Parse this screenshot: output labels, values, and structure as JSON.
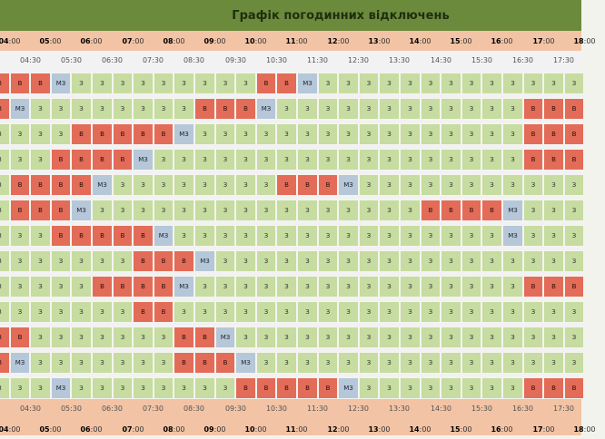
{
  "title": "Графік погодинних відключень",
  "hour_labels": [
    {
      "h": "04",
      "m": "00"
    },
    {
      "h": "05",
      "m": "00"
    },
    {
      "h": "06",
      "m": "00"
    },
    {
      "h": "07",
      "m": "00"
    },
    {
      "h": "08",
      "m": "00"
    },
    {
      "h": "09",
      "m": "00"
    },
    {
      "h": "10",
      "m": "00"
    },
    {
      "h": "11",
      "m": "00"
    },
    {
      "h": "12",
      "m": "00"
    },
    {
      "h": "13",
      "m": "00"
    },
    {
      "h": "14",
      "m": "00"
    },
    {
      "h": "15",
      "m": "00"
    },
    {
      "h": "16",
      "m": "00"
    },
    {
      "h": "17",
      "m": "00"
    },
    {
      "h": "18",
      "m": "00"
    }
  ],
  "half_labels": [
    "04:30",
    "05:30",
    "06:30",
    "07:30",
    "08:30",
    "09:30",
    "10:30",
    "11:30",
    "12:30",
    "13:30",
    "14:30",
    "15:30",
    "16:30",
    "17:30"
  ],
  "codes": {
    "з": "З",
    "в": "В",
    "м": "МЗ"
  },
  "rows": [
    "vvvmzzzzzzzzzvvmzzzzzzzzzzzzz",
    "vmzzzzzzzzvvvmzzzzzzzzzzzzvvv",
    "zzzzvvvvvmzzzzzzzzzzzzzzzzvvv",
    "zzzvvvvmzzzzzzzzzzzzzzzzzzvvv",
    "zvvvvmzzzzzzzzvvvmzzzzzzzzzzz",
    "zvvvmzzzzzzzzzzzzzzzzvvvvmzzz",
    "zzzvvvvvmzzzzzzzzzzzzzzzzmzzz",
    "zzzzzzzvvvmzzzzzzzzzzzzzzzzzz",
    "zzzzzvvvvmzzzzzzzzzzzzzzzzvvv",
    "zzzzzzzvvzzzzzzzzzzzzzzzzzzzz",
    "vvzzzzzzzvvmzzzzzzzzzzzzzzzzz",
    "vmzzzzzzzvvvmzzzzzzzzzzzzzzzz",
    "zzzmzzzzzzzzvvvvvmzzzzzzzzvvv"
  ]
}
